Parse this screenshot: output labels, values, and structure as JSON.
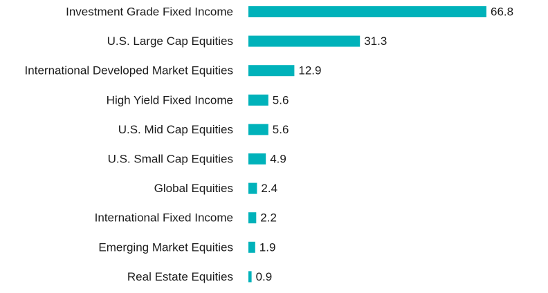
{
  "chart_data": {
    "type": "bar",
    "orientation": "horizontal",
    "categories": [
      "Investment Grade Fixed Income",
      "U.S. Large Cap Equities",
      "International Developed Market Equities",
      "High Yield Fixed Income",
      "U.S. Mid Cap Equities",
      "U.S. Small Cap Equities",
      "Global Equities",
      "International Fixed Income",
      "Emerging Market Equities",
      "Real Estate Equities"
    ],
    "values": [
      66.8,
      31.3,
      12.9,
      5.6,
      5.6,
      4.9,
      2.4,
      2.2,
      1.9,
      0.9
    ],
    "value_labels": [
      "66.8",
      "31.3",
      "12.9",
      "5.6",
      "5.6",
      "4.9",
      "2.4",
      "2.2",
      "1.9",
      "0.9"
    ],
    "title": "",
    "xlabel": "",
    "ylabel": "",
    "xlim": [
      0,
      70
    ],
    "grid": false,
    "legend": "none",
    "bar_color": "#00B2BA",
    "text_color": "#1a1a1a"
  }
}
